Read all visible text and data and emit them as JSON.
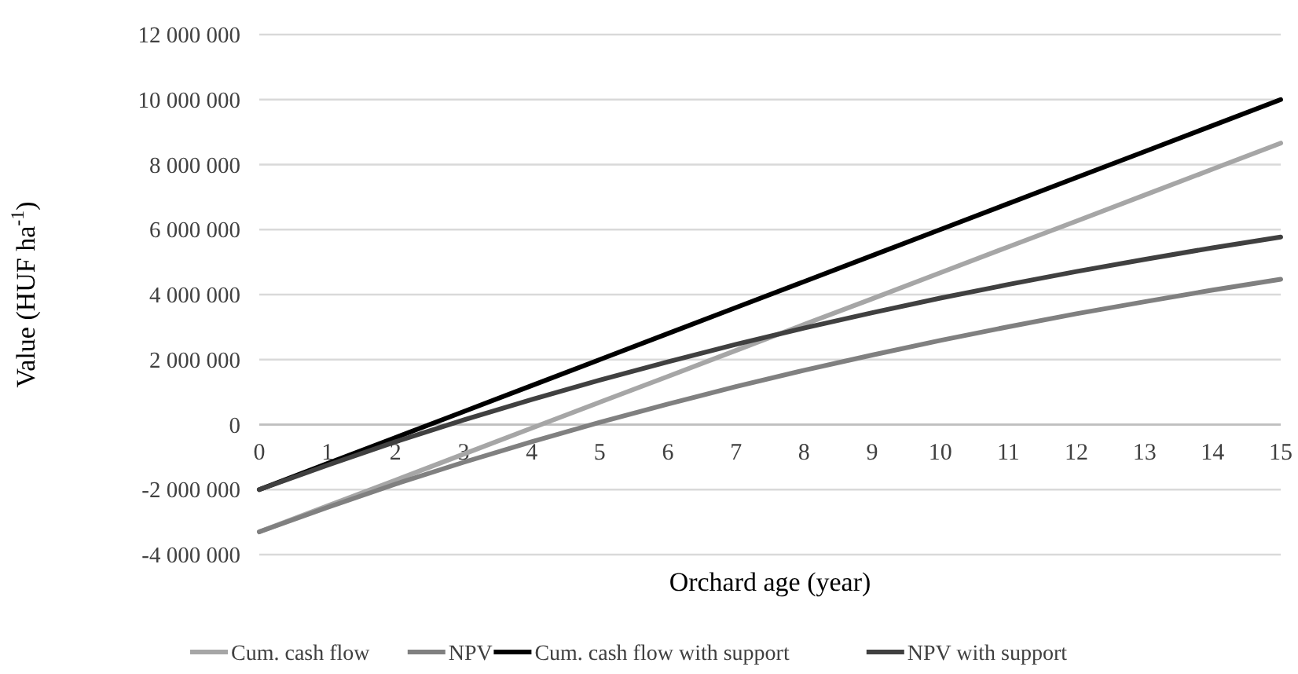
{
  "chart_data": {
    "type": "line",
    "xlabel": "Orchard age (year)",
    "ylabel": "Value (HUF ha$^{-1}$)",
    "x": [
      0,
      1,
      2,
      3,
      4,
      5,
      6,
      7,
      8,
      9,
      10,
      11,
      12,
      13,
      14,
      15
    ],
    "xlim": [
      0,
      15
    ],
    "xticks": [
      0,
      1,
      2,
      3,
      4,
      5,
      6,
      7,
      8,
      9,
      10,
      11,
      12,
      13,
      14,
      15
    ],
    "ylim": [
      -4000000,
      12000000
    ],
    "yticks": [
      {
        "value": -4000000,
        "label": "-4 000 000"
      },
      {
        "value": -2000000,
        "label": "-2 000 000"
      },
      {
        "value": 0,
        "label": "0"
      },
      {
        "value": 2000000,
        "label": "2 000 000"
      },
      {
        "value": 4000000,
        "label": "4 000 000"
      },
      {
        "value": 6000000,
        "label": "6 000 000"
      },
      {
        "value": 8000000,
        "label": "8 000 000"
      },
      {
        "value": 10000000,
        "label": "10 000 000"
      },
      {
        "value": 12000000,
        "label": "12 000 000"
      }
    ],
    "grid": "y",
    "legend": "bottom",
    "marker": "none",
    "line_style": "solid",
    "series": [
      {
        "name": "Cum. cash flow",
        "color": "#a6a6a6",
        "values": [
          -3300000,
          -2500000,
          -1710000,
          -910000,
          -110000,
          690000,
          1480000,
          2280000,
          3080000,
          3870000,
          4670000,
          5470000,
          6260000,
          7060000,
          7860000,
          8660000
        ]
      },
      {
        "name": "NPV",
        "color": "#808080",
        "values": [
          -3300000,
          -2550000,
          -1830000,
          -1160000,
          -530000,
          70000,
          630000,
          1170000,
          1670000,
          2140000,
          2590000,
          3010000,
          3410000,
          3780000,
          4140000,
          4470000
        ]
      },
      {
        "name": "Cum. cash flow with support",
        "color": "#000000",
        "values": [
          -2000000,
          -1200000,
          -400000,
          400000,
          1200000,
          2000000,
          2800000,
          3600000,
          4400000,
          5200000,
          6000000,
          6800000,
          7600000,
          8400000,
          9200000,
          10000000
        ]
      },
      {
        "name": "NPV with support",
        "color": "#404040",
        "values": [
          -2000000,
          -1250000,
          -530000,
          140000,
          770000,
          1370000,
          1930000,
          2470000,
          2970000,
          3440000,
          3890000,
          4310000,
          4710000,
          5080000,
          5440000,
          5770000
        ]
      }
    ]
  }
}
